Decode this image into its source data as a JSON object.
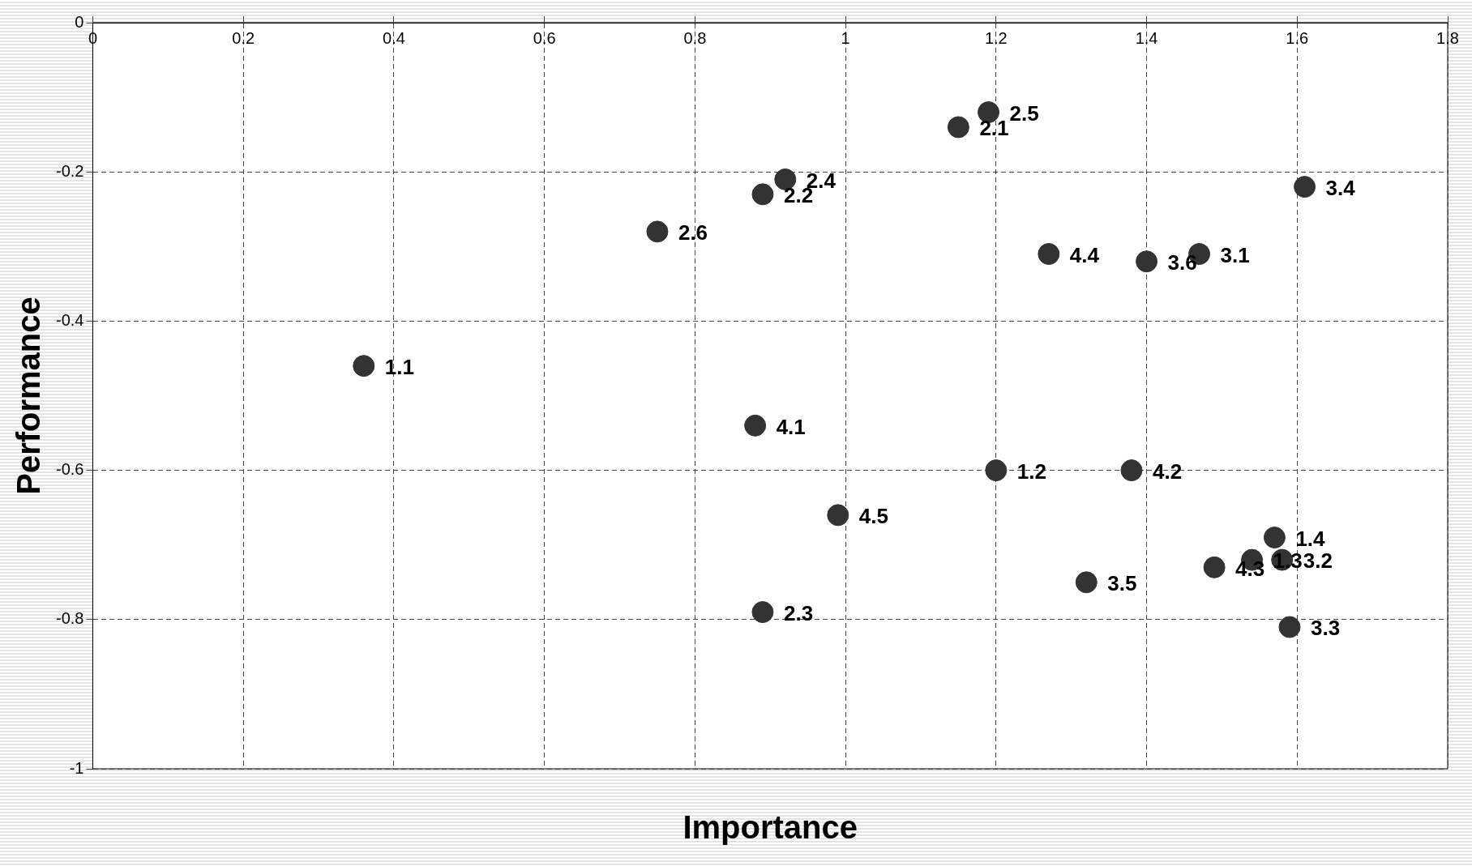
{
  "chart_data": {
    "type": "scatter",
    "xlabel": "Importance",
    "ylabel": "Performance",
    "x": [
      0.36,
      1.2,
      1.54,
      1.57,
      1.15,
      0.89,
      0.89,
      0.92,
      1.19,
      0.75,
      1.47,
      1.58,
      1.59,
      1.61,
      1.32,
      1.4,
      0.88,
      1.38,
      1.49,
      1.27,
      0.99
    ],
    "values": [
      -0.46,
      -0.6,
      -0.72,
      -0.69,
      -0.14,
      -0.23,
      -0.79,
      -0.21,
      -0.12,
      -0.28,
      -0.31,
      -0.72,
      -0.81,
      -0.22,
      -0.75,
      -0.32,
      -0.54,
      -0.6,
      -0.73,
      -0.31,
      -0.66
    ],
    "color": "#333333",
    "marker": "circle",
    "grid": true,
    "legend": false,
    "xlim": [
      0,
      1.8
    ],
    "xticks": [
      0,
      0.2,
      0.4,
      0.6,
      0.8,
      1,
      1.2,
      1.4,
      1.6,
      1.8
    ],
    "ylim": [
      -1,
      0
    ],
    "yticks": [
      -1,
      -0.8,
      -0.6,
      -0.4,
      -0.2,
      0
    ],
    "annotations": [
      {
        "text": "1.1",
        "x": 0.36,
        "y": -0.46
      },
      {
        "text": "1.2",
        "x": 1.2,
        "y": -0.6
      },
      {
        "text": "1.3",
        "x": 1.54,
        "y": -0.72
      },
      {
        "text": "1.4",
        "x": 1.57,
        "y": -0.69
      },
      {
        "text": "2.1",
        "x": 1.15,
        "y": -0.14
      },
      {
        "text": "2.2",
        "x": 0.89,
        "y": -0.23
      },
      {
        "text": "2.3",
        "x": 0.89,
        "y": -0.79
      },
      {
        "text": "2.4",
        "x": 0.92,
        "y": -0.21
      },
      {
        "text": "2.5",
        "x": 1.19,
        "y": -0.12
      },
      {
        "text": "2.6",
        "x": 0.75,
        "y": -0.28
      },
      {
        "text": "3.1",
        "x": 1.47,
        "y": -0.31
      },
      {
        "text": "3.2",
        "x": 1.58,
        "y": -0.72
      },
      {
        "text": "3.3",
        "x": 1.59,
        "y": -0.81
      },
      {
        "text": "3.4",
        "x": 1.61,
        "y": -0.22
      },
      {
        "text": "3.5",
        "x": 1.32,
        "y": -0.75
      },
      {
        "text": "3.6",
        "x": 1.4,
        "y": -0.32
      },
      {
        "text": "4.1",
        "x": 0.88,
        "y": -0.54
      },
      {
        "text": "4.2",
        "x": 1.38,
        "y": -0.6
      },
      {
        "text": "4.3",
        "x": 1.49,
        "y": -0.73
      },
      {
        "text": "4.4",
        "x": 1.27,
        "y": -0.31
      },
      {
        "text": "4.5",
        "x": 0.99,
        "y": -0.66
      }
    ]
  }
}
